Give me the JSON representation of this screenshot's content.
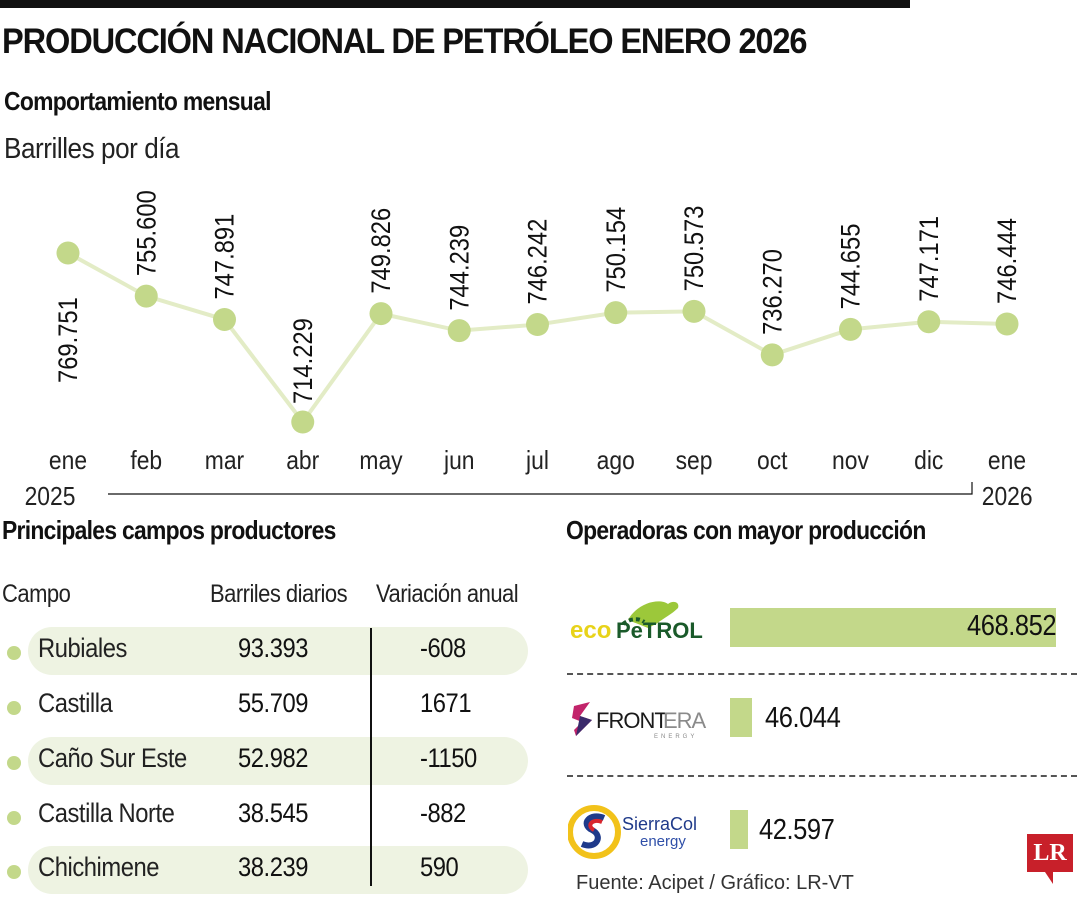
{
  "header": {
    "title": "PRODUCCIÓN NACIONAL DE PETRÓLEO ENERO 2026",
    "subtitle": "Comportamiento mensual",
    "unit": "Barrilles por día"
  },
  "chart_data": {
    "type": "line",
    "title": "Comportamiento mensual",
    "ylabel": "Barrilles por día",
    "xlabel": "",
    "categories": [
      "ene",
      "feb",
      "mar",
      "abr",
      "may",
      "jun",
      "jul",
      "ago",
      "sep",
      "oct",
      "nov",
      "dic",
      "ene"
    ],
    "year_labels": {
      "start": "2025",
      "end": "2026"
    },
    "series": [
      {
        "name": "Producción nacional",
        "values": [
          769751,
          755600,
          747891,
          714229,
          749826,
          744239,
          746242,
          750154,
          750573,
          736270,
          744655,
          747171,
          746444
        ],
        "labels": [
          "769.751",
          "755.600",
          "747.891",
          "714.229",
          "749.826",
          "744.239",
          "746.242",
          "750.154",
          "750.573",
          "736.270",
          "744.655",
          "747.171",
          "746.444"
        ]
      }
    ],
    "grid": false,
    "legend": "none",
    "color": "#c3d88a",
    "line_color": "#e3ecc6"
  },
  "fields": {
    "title": "Principales campos productores",
    "headers": {
      "campo": "Campo",
      "barriles": "Barriles diarios",
      "variacion": "Variación anual"
    },
    "rows": [
      {
        "name": "Rubiales",
        "barrels": "93.393",
        "variation": "-608"
      },
      {
        "name": "Castilla",
        "barrels": "55.709",
        "variation": "1671"
      },
      {
        "name": "Caño Sur Este",
        "barrels": "52.982",
        "variation": "-1150"
      },
      {
        "name": "Castilla Norte",
        "barrels": "38.545",
        "variation": "-882"
      },
      {
        "name": "Chichimene",
        "barrels": "38.239",
        "variation": "590"
      }
    ]
  },
  "operators": {
    "title": "Operadoras con mayor producción",
    "items": [
      {
        "name": "Ecopetrol",
        "logo_text_a": "eco",
        "logo_text_b": "PeTROL",
        "value": 468852,
        "label": "468.852"
      },
      {
        "name": "Frontera Energy",
        "logo_text_a": "FRONT",
        "logo_text_b": "ERA",
        "logo_sub": "ENERGY",
        "value": 46044,
        "label": "46.044"
      },
      {
        "name": "SierraCol Energy",
        "logo_text_a": "SierraCol",
        "logo_sub": "energy",
        "value": 42597,
        "label": "42.597"
      }
    ]
  },
  "footer": {
    "source": "Fuente: Acipet / Gráfico: LR-VT",
    "logo": "LR"
  }
}
